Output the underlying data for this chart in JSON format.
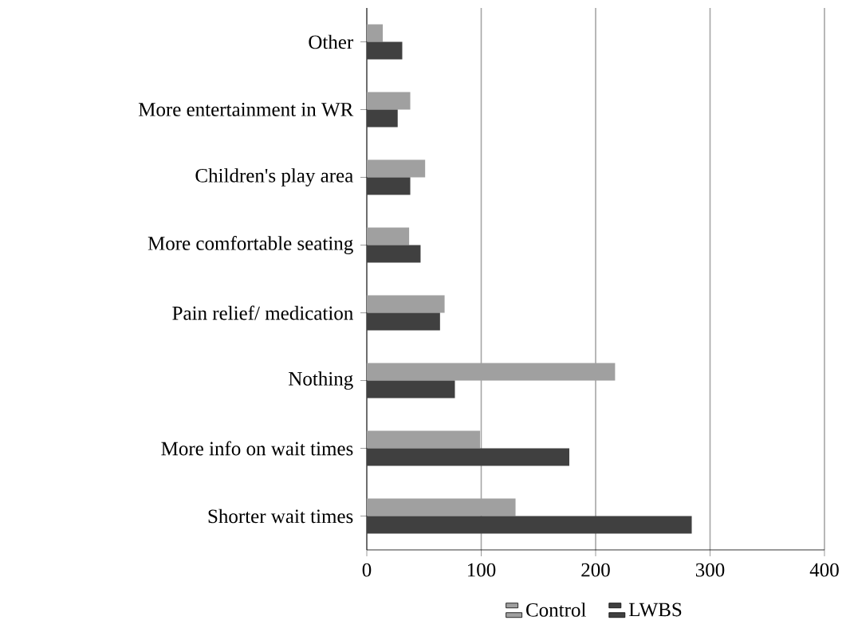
{
  "chart_data": {
    "type": "bar",
    "orientation": "horizontal",
    "categories": [
      "Other",
      "More entertainment in WR",
      "Children's play area",
      "More comfortable seating",
      "Pain relief/ medication",
      "Nothing",
      "More info on wait times",
      "Shorter wait times"
    ],
    "series": [
      {
        "name": "Control",
        "color": "#a0a0a0",
        "values": [
          14,
          38,
          51,
          37,
          68,
          217,
          99,
          130
        ]
      },
      {
        "name": "LWBS",
        "color": "#404040",
        "values": [
          31,
          27,
          38,
          47,
          64,
          77,
          177,
          284
        ]
      }
    ],
    "xlim": [
      0,
      400
    ],
    "xticks": [
      0,
      100,
      200,
      300,
      400
    ],
    "grid": "x",
    "legend": "bottom"
  }
}
